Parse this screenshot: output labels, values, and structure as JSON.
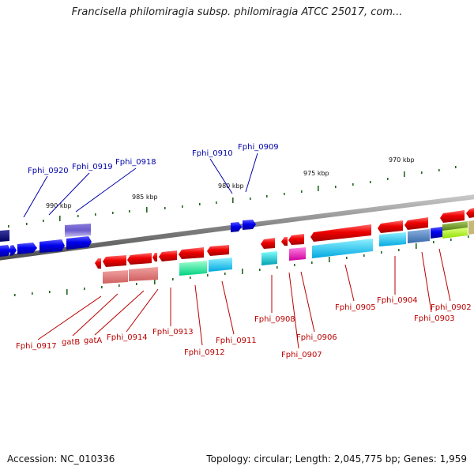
{
  "title": "Francisella philomiragia subsp. philomiragia ATCC 25017, com...",
  "accession": "Accession: NC_010336",
  "summary": "Topology: circular; Length: 2,045,775 bp; Genes: 1,959",
  "scale_labels": [
    "990 kbp",
    "985 kbp",
    "980 kbp",
    "975 kbp",
    "970 kbp"
  ],
  "upper_labels": [
    "Fphi_0920",
    "Fphi_0919",
    "Fphi_0918",
    "Fphi_0910",
    "Fphi_0909"
  ],
  "lower_labels": [
    "Fphi_0917",
    "gatB",
    "gatA",
    "Fphi_0914",
    "Fphi_0913",
    "Fphi_0912",
    "Fphi_0911",
    "Fphi_0908",
    "Fphi_0907",
    "Fphi_0906",
    "Fphi_0905",
    "Fphi_0904",
    "Fphi_0903",
    "Fphi_0902"
  ],
  "colors": {
    "backbone": "#888888",
    "forward_gene": "#0000ee",
    "reverse_gene": "#ee0000",
    "tick": "#226622",
    "upper_label": "#0000aa",
    "lower_label": "#bb0000"
  }
}
